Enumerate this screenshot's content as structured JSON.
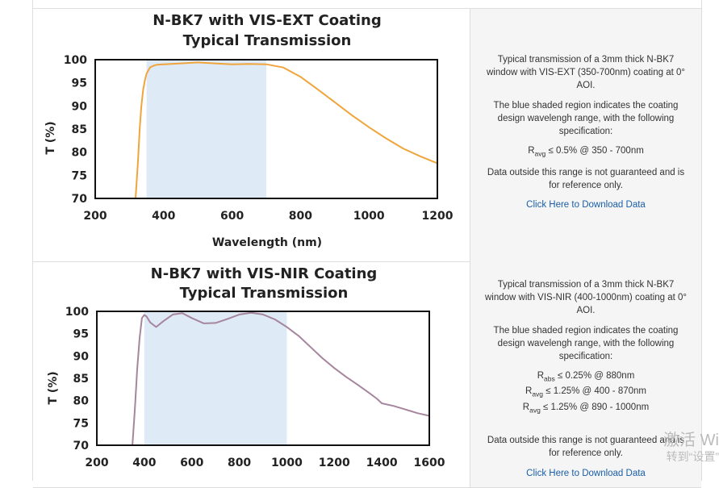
{
  "colors": {
    "shade": "#deebf7",
    "ext_curve": "#f0a53c",
    "nir_curve": "#a6869d",
    "link": "#1a5ea8"
  },
  "chart_data": [
    {
      "type": "line",
      "title_line1": "N-BK7 with VIS-EXT Coating",
      "title_line2": "Typical Transmission",
      "xlabel": "Wavelength (nm)",
      "ylabel": "T (%)",
      "xlim": [
        200,
        1200
      ],
      "ylim": [
        70,
        100
      ],
      "xticks": [
        200,
        400,
        600,
        800,
        1000,
        1200
      ],
      "yticks": [
        70,
        75,
        80,
        85,
        90,
        95,
        100
      ],
      "shaded_range": [
        350,
        700
      ],
      "series": [
        {
          "name": "VIS-EXT",
          "x": [
            318,
            325,
            330,
            335,
            340,
            345,
            350,
            360,
            370,
            380,
            400,
            450,
            500,
            550,
            600,
            650,
            700,
            750,
            800,
            850,
            900,
            950,
            1000,
            1050,
            1100,
            1150,
            1200
          ],
          "y": [
            70,
            78,
            85,
            90,
            93.5,
            95.5,
            97,
            98.3,
            98.7,
            98.9,
            99.0,
            99.2,
            99.4,
            99.2,
            99.0,
            99.1,
            99.0,
            98.3,
            96.3,
            93.6,
            90.8,
            88.0,
            85.4,
            83.0,
            80.8,
            79.1,
            77.6
          ]
        }
      ]
    },
    {
      "type": "line",
      "title_line1": "N-BK7 with VIS-NIR Coating",
      "title_line2": "Typical Transmission",
      "xlabel": "Wavelength (nm)",
      "ylabel": "T (%)",
      "xlim": [
        200,
        1600
      ],
      "ylim": [
        70,
        100
      ],
      "xticks": [
        200,
        400,
        600,
        800,
        1000,
        1200,
        1400,
        1600
      ],
      "yticks": [
        70,
        75,
        80,
        85,
        90,
        95,
        100
      ],
      "shaded_range": [
        400,
        1000
      ],
      "series": [
        {
          "name": "VIS-NIR",
          "x": [
            350,
            360,
            370,
            380,
            390,
            400,
            410,
            425,
            450,
            480,
            520,
            560,
            600,
            650,
            700,
            750,
            800,
            850,
            900,
            950,
            1000,
            1050,
            1100,
            1150,
            1200,
            1250,
            1300,
            1350,
            1380,
            1400,
            1450,
            1500,
            1550,
            1600
          ],
          "y": [
            70,
            78,
            87,
            94,
            98.5,
            99.2,
            98.8,
            97.5,
            96.5,
            97.8,
            99.3,
            99.6,
            98.5,
            97.3,
            97.4,
            98.3,
            99.3,
            99.7,
            99.3,
            98.2,
            96.5,
            94.5,
            92.0,
            89.5,
            87.3,
            85.3,
            83.5,
            81.6,
            80.4,
            79.4,
            78.8,
            78.0,
            77.2,
            76.6
          ]
        }
      ]
    }
  ],
  "panel1": {
    "desc_lines": [
      "Typical transmission of a 3mm thick N-BK7",
      "window with VIS-EXT (350-700nm) coating at 0°",
      "AOI."
    ],
    "shaded_lines": [
      "The blue shaded region indicates the coating",
      "design wavelengh range, with the following",
      "specification:"
    ],
    "spec_r": "R",
    "spec_sub": "avg",
    "spec_val": "≤ 0.5% @ 350 - 700nm",
    "ref_lines": [
      "Data outside this range is not guaranteed and is",
      "for reference only."
    ],
    "link": "Click Here to Download Data"
  },
  "panel2": {
    "desc_lines": [
      "Typical transmission of a 3mm thick N-BK7",
      "window with VIS-NIR (400-1000nm) coating at 0°",
      "AOI."
    ],
    "shaded_lines": [
      "The blue shaded region indicates the coating",
      "design wavelengh range, with the following",
      "specification:"
    ],
    "spec1_r": "R",
    "spec1_sub": "abs",
    "spec1_val": "≤ 0.25% @ 880nm",
    "spec2_r": "R",
    "spec2_sub": "avg",
    "spec2_val": "≤ 1.25% @ 400 - 870nm",
    "spec3_r": "R",
    "spec3_sub": "avg",
    "spec3_val": "≤ 1.25% @ 890 - 1000nm",
    "ref_lines": [
      "Data outside this range is not guaranteed and is",
      "for reference only."
    ],
    "link": "Click Here to Download Data"
  },
  "watermark": {
    "line1": "激活 Wi",
    "line2": "转到“设置”"
  }
}
